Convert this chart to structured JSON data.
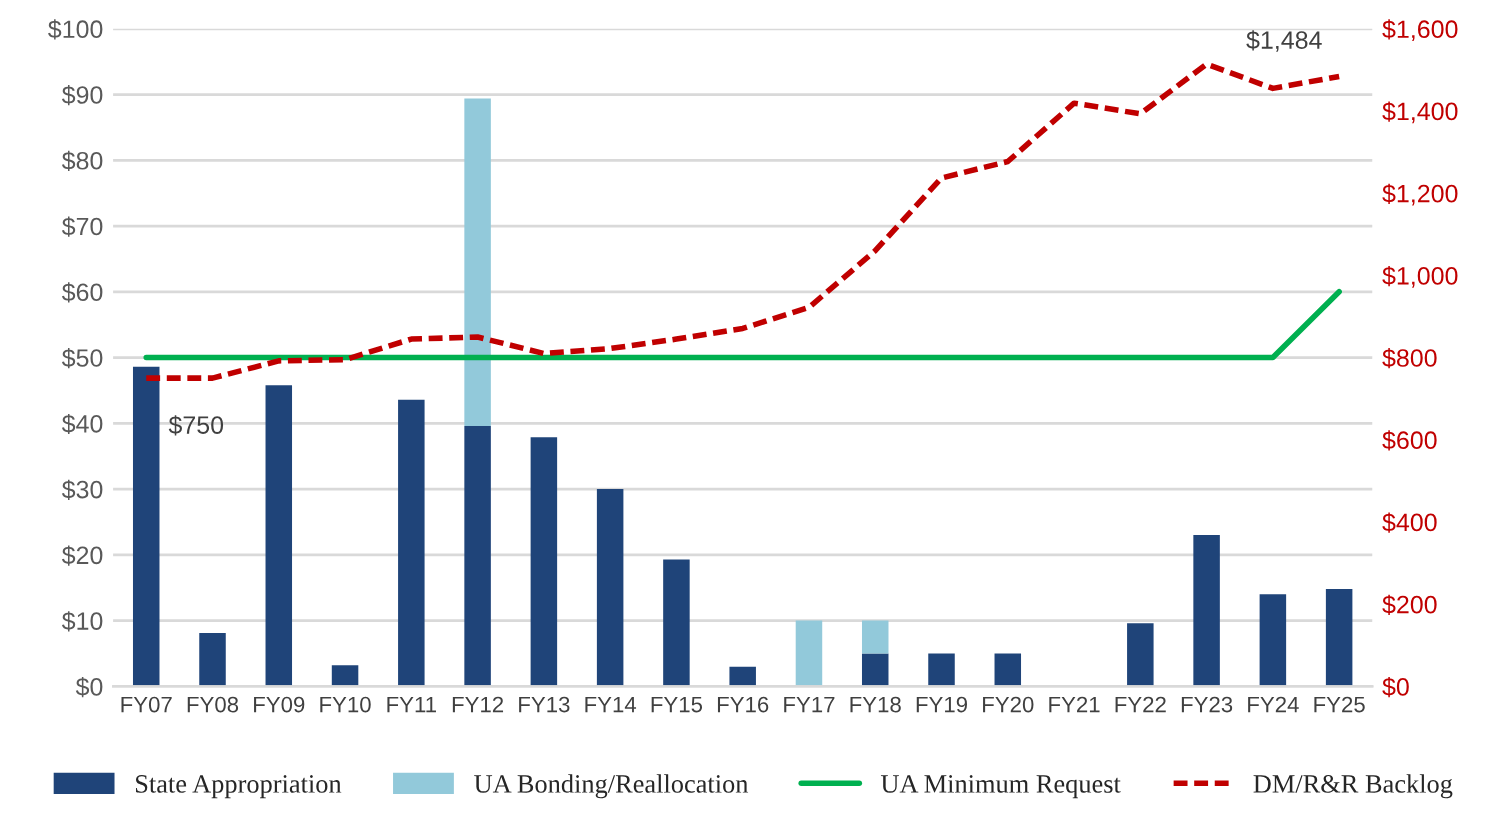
{
  "chart_data": {
    "type": "bar",
    "stacked": true,
    "categories": [
      "FY07",
      "FY08",
      "FY09",
      "FY10",
      "FY11",
      "FY12",
      "FY13",
      "FY14",
      "FY15",
      "FY16",
      "FY17",
      "FY18",
      "FY19",
      "FY20",
      "FY21",
      "FY22",
      "FY23",
      "FY24",
      "FY25"
    ],
    "series": [
      {
        "name": "State Appropriation",
        "color": "#1f4479",
        "values": [
          48.6,
          8.1,
          45.8,
          3.2,
          43.6,
          39.6,
          37.9,
          30,
          19.3,
          3,
          0,
          5,
          5,
          5,
          0,
          9.6,
          23,
          14,
          14.8
        ]
      },
      {
        "name": "UA Bonding/Reallocation",
        "color": "#92c9da",
        "values": [
          0,
          0,
          0,
          0,
          0,
          49.8,
          0,
          0,
          0,
          0,
          10,
          5,
          0,
          0,
          0,
          0,
          0,
          0,
          0
        ]
      },
      {
        "name": "UA Minimum Request",
        "type": "line",
        "color": "#00b050",
        "line_style": "solid",
        "values": [
          50,
          50,
          50,
          50,
          50,
          50,
          50,
          50,
          50,
          50,
          50,
          50,
          50,
          50,
          50,
          50,
          50,
          50,
          60
        ]
      },
      {
        "name": "DM/R&R Backlog",
        "type": "line",
        "axis": "y2",
        "color": "#c00000",
        "line_style": "dashed",
        "values": [
          750,
          750,
          792,
          795,
          845,
          850,
          810,
          822,
          845,
          871,
          922,
          1060,
          1237,
          1277,
          1419,
          1393,
          1514,
          1455,
          1484
        ],
        "value_labels": [
          "$750",
          null,
          null,
          null,
          null,
          null,
          null,
          null,
          null,
          null,
          null,
          null,
          null,
          null,
          null,
          null,
          null,
          null,
          "$1,484"
        ]
      }
    ],
    "ylim": [
      0,
      100
    ],
    "yticks": [
      {
        "value": 0,
        "label": "$0"
      },
      {
        "value": 10,
        "label": "$10"
      },
      {
        "value": 20,
        "label": "$20"
      },
      {
        "value": 30,
        "label": "$30"
      },
      {
        "value": 40,
        "label": "$40"
      },
      {
        "value": 50,
        "label": "$50"
      },
      {
        "value": 60,
        "label": "$60"
      },
      {
        "value": 70,
        "label": "$70"
      },
      {
        "value": 80,
        "label": "$80"
      },
      {
        "value": 90,
        "label": "$90"
      },
      {
        "value": 100,
        "label": "$100"
      }
    ],
    "y2lim": [
      0,
      1600
    ],
    "y2ticks": [
      {
        "value": 0,
        "label": "$0"
      },
      {
        "value": 200,
        "label": "$200"
      },
      {
        "value": 400,
        "label": "$400"
      },
      {
        "value": 600,
        "label": "$600"
      },
      {
        "value": 800,
        "label": "$800"
      },
      {
        "value": 1000,
        "label": "$1,000"
      },
      {
        "value": 1200,
        "label": "$1,200"
      },
      {
        "value": 1400,
        "label": "$1,400"
      },
      {
        "value": 1600,
        "label": "$1,600"
      }
    ],
    "grid": "y",
    "legend": "bottom",
    "marker": "none"
  }
}
